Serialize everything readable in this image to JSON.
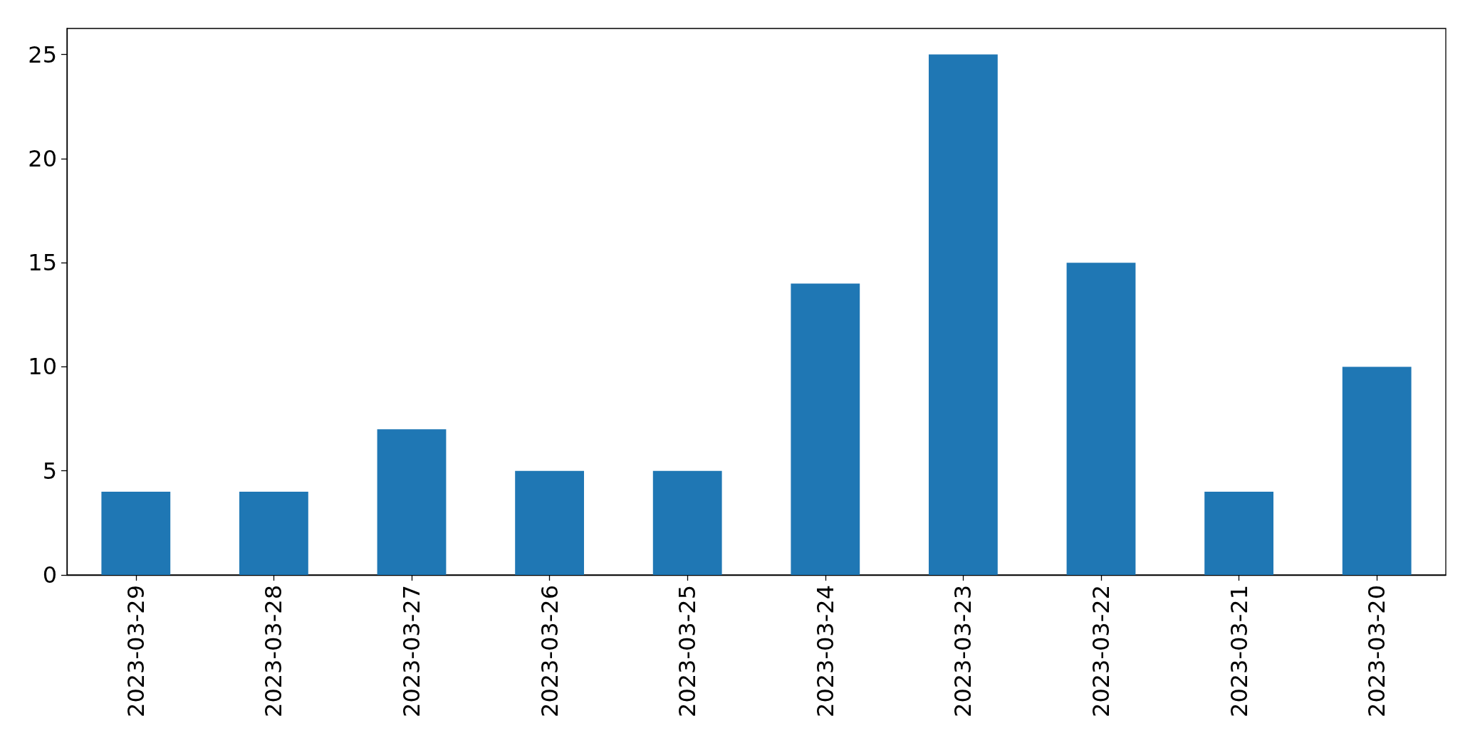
{
  "chart_data": {
    "type": "bar",
    "categories": [
      "2023-03-29",
      "2023-03-28",
      "2023-03-27",
      "2023-03-26",
      "2023-03-25",
      "2023-03-24",
      "2023-03-23",
      "2023-03-22",
      "2023-03-21",
      "2023-03-20"
    ],
    "values": [
      4,
      4,
      7,
      5,
      5,
      14,
      25,
      15,
      4,
      10
    ],
    "color": "#1f77b4",
    "ylim": [
      0,
      26.25
    ],
    "yticks": [
      0,
      5,
      10,
      15,
      20,
      25
    ],
    "grid": false
  }
}
